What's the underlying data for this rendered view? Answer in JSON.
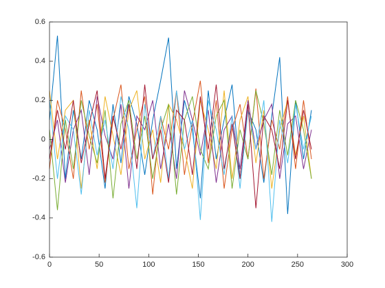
{
  "chart_data": {
    "type": "line",
    "x": [
      0,
      8,
      16,
      24,
      32,
      40,
      48,
      56,
      64,
      72,
      80,
      88,
      96,
      104,
      112,
      120,
      128,
      136,
      144,
      152,
      160,
      168,
      176,
      184,
      192,
      200,
      208,
      216,
      224,
      232,
      240,
      248,
      256,
      264
    ],
    "series": [
      {
        "color": "#0072BD",
        "values": [
          0.1,
          0.53,
          -0.2,
          0.15,
          -0.1,
          0.2,
          0.05,
          -0.25,
          0.18,
          -0.12,
          0.22,
          0.08,
          -0.18,
          0.1,
          0.3,
          0.52,
          -0.15,
          0.2,
          0.05,
          -0.3,
          0.25,
          -0.1,
          0.1,
          0.28,
          -0.2,
          0.15,
          0.05,
          -0.22,
          0.12,
          0.42,
          -0.38,
          0.2,
          -0.1,
          0.15
        ]
      },
      {
        "color": "#D95319",
        "values": [
          -0.15,
          0.2,
          0.05,
          -0.2,
          0.25,
          -0.05,
          0.18,
          -0.22,
          0.1,
          0.28,
          -0.15,
          0.05,
          0.22,
          -0.28,
          0.12,
          -0.05,
          0.25,
          -0.18,
          0.08,
          0.3,
          -0.12,
          0.2,
          -0.25,
          0.05,
          0.18,
          -0.1,
          0.26,
          -0.2,
          0.1,
          -0.05,
          0.22,
          -0.15,
          0.2,
          -0.1
        ]
      },
      {
        "color": "#EDB120",
        "values": [
          0.25,
          -0.1,
          0.15,
          0.2,
          -0.25,
          0.1,
          -0.15,
          0.22,
          0.02,
          -0.18,
          0.15,
          0.25,
          -0.1,
          0.05,
          -0.22,
          0.18,
          0.1,
          -0.05,
          -0.25,
          0.2,
          0.05,
          -0.15,
          0.25,
          -0.2,
          0.1,
          0.22,
          -0.12,
          0.15,
          -0.25,
          0.05,
          0.2,
          -0.08,
          0.12,
          -0.2
        ]
      },
      {
        "color": "#7E2F8E",
        "values": [
          -0.05,
          0.1,
          -0.22,
          0.05,
          0.15,
          -0.18,
          0.22,
          0.02,
          -0.1,
          0.18,
          -0.25,
          0.12,
          0.05,
          0.2,
          -0.15,
          0.08,
          -0.2,
          0.25,
          0.1,
          -0.08,
          0.15,
          -0.22,
          0.05,
          0.12,
          -0.15,
          0.2,
          -0.05,
          0.1,
          0.18,
          -0.2,
          0.08,
          0.12,
          -0.15,
          0.05
        ]
      },
      {
        "color": "#77AC30",
        "values": [
          0.05,
          -0.36,
          0.1,
          -0.15,
          0.2,
          0.02,
          -0.12,
          0.15,
          -0.3,
          0.08,
          0.2,
          -0.1,
          0.12,
          -0.2,
          0.05,
          0.18,
          -0.28,
          0.1,
          0.22,
          -0.05,
          -0.15,
          0.12,
          0.2,
          -0.25,
          0.05,
          -0.1,
          0.25,
          0.08,
          -0.18,
          0.15,
          -0.08,
          0.2,
          0.05,
          -0.2
        ]
      },
      {
        "color": "#4DBEEE",
        "values": [
          0.2,
          -0.2,
          0.12,
          0.05,
          -0.28,
          0.15,
          -0.08,
          0.1,
          -0.15,
          0.22,
          0.05,
          -0.35,
          0.18,
          -0.1,
          0.12,
          -0.2,
          0.25,
          -0.05,
          0.1,
          -0.41,
          0.2,
          0.05,
          -0.18,
          0.12,
          -0.25,
          0.15,
          -0.05,
          0.2,
          -0.42,
          0.1,
          -0.12,
          0.18,
          -0.05,
          0.12
        ]
      },
      {
        "color": "#A2142F",
        "values": [
          -0.1,
          0.15,
          -0.05,
          0.2,
          -0.12,
          0.08,
          0.25,
          -0.2,
          0.12,
          -0.05,
          0.18,
          -0.15,
          0.28,
          -0.1,
          0.05,
          -0.22,
          0.15,
          0.1,
          -0.18,
          0.22,
          -0.05,
          0.28,
          -0.15,
          0.08,
          -0.2,
          0.18,
          -0.35,
          0.12,
          0.05,
          -0.15,
          0.2,
          -0.1,
          0.15,
          -0.05
        ]
      }
    ],
    "xlim": [
      0,
      300
    ],
    "xticks": [
      0,
      50,
      100,
      150,
      200,
      250,
      300
    ],
    "ylim": [
      -0.6,
      0.6
    ],
    "yticks": [
      -0.6,
      -0.4,
      -0.2,
      0,
      0.2,
      0.4,
      0.6
    ],
    "grid": false
  }
}
